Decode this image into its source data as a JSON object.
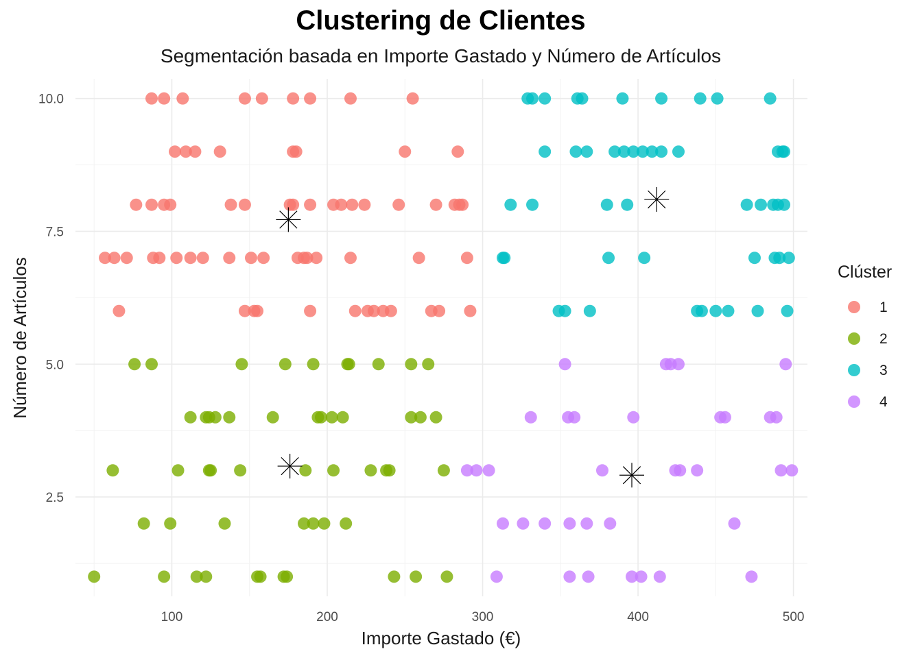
{
  "chart_data": {
    "type": "scatter",
    "title": "Clustering de Clientes",
    "subtitle": "Segmentación basada en Importe Gastado y Número de Artículos",
    "xlabel": "Importe Gastado (€)",
    "ylabel": "Número de Artículos",
    "xlim": [
      38,
      509
    ],
    "ylim": [
      0.63,
      10.37
    ],
    "x_ticks": [
      100,
      200,
      300,
      400,
      500
    ],
    "x_tick_labels": [
      "100",
      "200",
      "300",
      "400",
      "500"
    ],
    "y_ticks": [
      2.5,
      5.0,
      7.5,
      10.0
    ],
    "y_tick_labels": [
      "2.5",
      "5.0",
      "7.5",
      "10.0"
    ],
    "grid": true,
    "legend": {
      "title": "Clúster",
      "position": "right"
    },
    "series": [
      {
        "name": "1",
        "color": "#F8766D",
        "points": [
          [
            87,
            10
          ],
          [
            95,
            10
          ],
          [
            107,
            10
          ],
          [
            147,
            10
          ],
          [
            158,
            10
          ],
          [
            178,
            10
          ],
          [
            189,
            10
          ],
          [
            215,
            10
          ],
          [
            255,
            10
          ],
          [
            102,
            9
          ],
          [
            109,
            9
          ],
          [
            115,
            9
          ],
          [
            131,
            9
          ],
          [
            178,
            9
          ],
          [
            180,
            9
          ],
          [
            250,
            9
          ],
          [
            284,
            9
          ],
          [
            77,
            8
          ],
          [
            87,
            8
          ],
          [
            95,
            8
          ],
          [
            99,
            8
          ],
          [
            138,
            8
          ],
          [
            147,
            8
          ],
          [
            176,
            8
          ],
          [
            178,
            8
          ],
          [
            189,
            8
          ],
          [
            204,
            8
          ],
          [
            209,
            8
          ],
          [
            216,
            8
          ],
          [
            224,
            8
          ],
          [
            246,
            8
          ],
          [
            270,
            8
          ],
          [
            282,
            8
          ],
          [
            285,
            8
          ],
          [
            287,
            8
          ],
          [
            57,
            7
          ],
          [
            63,
            7
          ],
          [
            71,
            7
          ],
          [
            88,
            7
          ],
          [
            92,
            7
          ],
          [
            103,
            7
          ],
          [
            112,
            7
          ],
          [
            120,
            7
          ],
          [
            137,
            7
          ],
          [
            151,
            7
          ],
          [
            159,
            7
          ],
          [
            181,
            7
          ],
          [
            185,
            7
          ],
          [
            187,
            7
          ],
          [
            193,
            7
          ],
          [
            215,
            7
          ],
          [
            259,
            7
          ],
          [
            290,
            7
          ],
          [
            66,
            6
          ],
          [
            147,
            6
          ],
          [
            153,
            6
          ],
          [
            155,
            6
          ],
          [
            189,
            6
          ],
          [
            218,
            6
          ],
          [
            226,
            6
          ],
          [
            230,
            6
          ],
          [
            236,
            6
          ],
          [
            241,
            6
          ],
          [
            267,
            6
          ],
          [
            272,
            6
          ],
          [
            292,
            6
          ]
        ]
      },
      {
        "name": "2",
        "color": "#7CAE00",
        "points": [
          [
            76,
            5
          ],
          [
            87,
            5
          ],
          [
            145,
            5
          ],
          [
            173,
            5
          ],
          [
            191,
            5
          ],
          [
            213,
            5
          ],
          [
            214,
            5
          ],
          [
            233,
            5
          ],
          [
            254,
            5
          ],
          [
            265,
            5
          ],
          [
            112,
            4
          ],
          [
            122,
            4
          ],
          [
            124,
            4
          ],
          [
            128,
            4
          ],
          [
            137,
            4
          ],
          [
            165,
            4
          ],
          [
            194,
            4
          ],
          [
            196,
            4
          ],
          [
            203,
            4
          ],
          [
            210,
            4
          ],
          [
            254,
            4
          ],
          [
            260,
            4
          ],
          [
            270,
            4
          ],
          [
            62,
            3
          ],
          [
            104,
            3
          ],
          [
            124,
            3
          ],
          [
            125,
            3
          ],
          [
            144,
            3
          ],
          [
            186,
            3
          ],
          [
            204,
            3
          ],
          [
            228,
            3
          ],
          [
            238,
            3
          ],
          [
            240,
            3
          ],
          [
            275,
            3
          ],
          [
            82,
            2
          ],
          [
            99,
            2
          ],
          [
            134,
            2
          ],
          [
            185,
            2
          ],
          [
            191,
            2
          ],
          [
            198,
            2
          ],
          [
            212,
            2
          ],
          [
            50,
            1
          ],
          [
            95,
            1
          ],
          [
            116,
            1
          ],
          [
            122,
            1
          ],
          [
            155,
            1
          ],
          [
            157,
            1
          ],
          [
            172,
            1
          ],
          [
            174,
            1
          ],
          [
            243,
            1
          ],
          [
            257,
            1
          ],
          [
            277,
            1
          ]
        ]
      },
      {
        "name": "3",
        "color": "#00BFC4",
        "points": [
          [
            329,
            10
          ],
          [
            332,
            10
          ],
          [
            340,
            10
          ],
          [
            361,
            10
          ],
          [
            364,
            10
          ],
          [
            390,
            10
          ],
          [
            415,
            10
          ],
          [
            440,
            10
          ],
          [
            451,
            10
          ],
          [
            485,
            10
          ],
          [
            340,
            9
          ],
          [
            360,
            9
          ],
          [
            367,
            9
          ],
          [
            385,
            9
          ],
          [
            391,
            9
          ],
          [
            397,
            9
          ],
          [
            403,
            9
          ],
          [
            409,
            9
          ],
          [
            415,
            9
          ],
          [
            426,
            9
          ],
          [
            490,
            9
          ],
          [
            493,
            9
          ],
          [
            494,
            9
          ],
          [
            318,
            8
          ],
          [
            332,
            8
          ],
          [
            380,
            8
          ],
          [
            393,
            8
          ],
          [
            470,
            8
          ],
          [
            479,
            8
          ],
          [
            487,
            8
          ],
          [
            490,
            8
          ],
          [
            494,
            8
          ],
          [
            313,
            7
          ],
          [
            314,
            7
          ],
          [
            381,
            7
          ],
          [
            404,
            7
          ],
          [
            475,
            7
          ],
          [
            488,
            7
          ],
          [
            491,
            7
          ],
          [
            497,
            7
          ],
          [
            349,
            6
          ],
          [
            353,
            6
          ],
          [
            369,
            6
          ],
          [
            438,
            6
          ],
          [
            441,
            6
          ],
          [
            450,
            6
          ],
          [
            458,
            6
          ],
          [
            477,
            6
          ],
          [
            496,
            6
          ]
        ]
      },
      {
        "name": "4",
        "color": "#C77CFF",
        "points": [
          [
            353,
            5
          ],
          [
            418,
            5
          ],
          [
            421,
            5
          ],
          [
            426,
            5
          ],
          [
            495,
            5
          ],
          [
            331,
            4
          ],
          [
            355,
            4
          ],
          [
            359,
            4
          ],
          [
            397,
            4
          ],
          [
            453,
            4
          ],
          [
            456,
            4
          ],
          [
            485,
            4
          ],
          [
            489,
            4
          ],
          [
            290,
            3
          ],
          [
            296,
            3
          ],
          [
            304,
            3
          ],
          [
            377,
            3
          ],
          [
            424,
            3
          ],
          [
            427,
            3
          ],
          [
            438,
            3
          ],
          [
            492,
            3
          ],
          [
            499,
            3
          ],
          [
            313,
            2
          ],
          [
            326,
            2
          ],
          [
            340,
            2
          ],
          [
            356,
            2
          ],
          [
            367,
            2
          ],
          [
            382,
            2
          ],
          [
            462,
            2
          ],
          [
            309,
            1
          ],
          [
            356,
            1
          ],
          [
            368,
            1
          ],
          [
            396,
            1
          ],
          [
            402,
            1
          ],
          [
            414,
            1
          ],
          [
            473,
            1
          ]
        ]
      }
    ],
    "centroids": [
      [
        175,
        7.72
      ],
      [
        412,
        8.1
      ],
      [
        176,
        3.08
      ],
      [
        396,
        2.91
      ]
    ]
  }
}
